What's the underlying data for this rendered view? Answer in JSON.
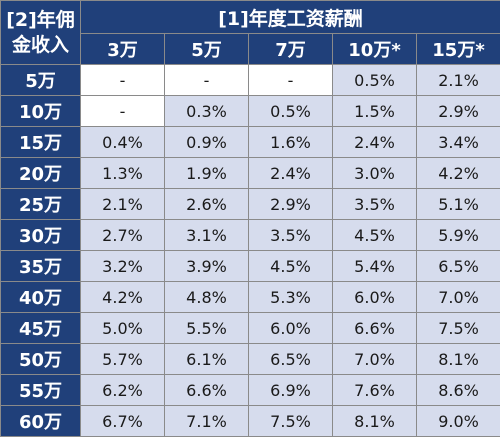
{
  "corner_label": "[2]年佣金收入",
  "group_header": "[1]年度工资薪酬",
  "columns": [
    "3万",
    "5万",
    "7万",
    "10万*",
    "15万*"
  ],
  "rows": [
    {
      "label": "5万",
      "values": [
        "-",
        "-",
        "-",
        "0.5%",
        "2.1%"
      ]
    },
    {
      "label": "10万",
      "values": [
        "-",
        "0.3%",
        "0.5%",
        "1.5%",
        "2.9%"
      ]
    },
    {
      "label": "15万",
      "values": [
        "0.4%",
        "0.9%",
        "1.6%",
        "2.4%",
        "3.4%"
      ]
    },
    {
      "label": "20万",
      "values": [
        "1.3%",
        "1.9%",
        "2.4%",
        "3.0%",
        "4.2%"
      ]
    },
    {
      "label": "25万",
      "values": [
        "2.1%",
        "2.6%",
        "2.9%",
        "3.5%",
        "5.1%"
      ]
    },
    {
      "label": "30万",
      "values": [
        "2.7%",
        "3.1%",
        "3.5%",
        "4.5%",
        "5.9%"
      ]
    },
    {
      "label": "35万",
      "values": [
        "3.2%",
        "3.9%",
        "4.5%",
        "5.4%",
        "6.5%"
      ]
    },
    {
      "label": "40万",
      "values": [
        "4.2%",
        "4.8%",
        "5.3%",
        "6.0%",
        "7.0%"
      ]
    },
    {
      "label": "45万",
      "values": [
        "5.0%",
        "5.5%",
        "6.0%",
        "6.6%",
        "7.5%"
      ]
    },
    {
      "label": "50万",
      "values": [
        "5.7%",
        "6.1%",
        "6.5%",
        "7.0%",
        "8.1%"
      ]
    },
    {
      "label": "55万",
      "values": [
        "6.2%",
        "6.6%",
        "6.9%",
        "7.6%",
        "8.6%"
      ]
    },
    {
      "label": "60万",
      "values": [
        "6.7%",
        "7.1%",
        "7.5%",
        "8.1%",
        "9.0%"
      ]
    }
  ],
  "colors": {
    "header_bg": "#20407a",
    "header_text": "#ffffff",
    "cell_white": "#ffffff",
    "cell_blue": "#d6dced",
    "grid": "#8a8a8a"
  }
}
